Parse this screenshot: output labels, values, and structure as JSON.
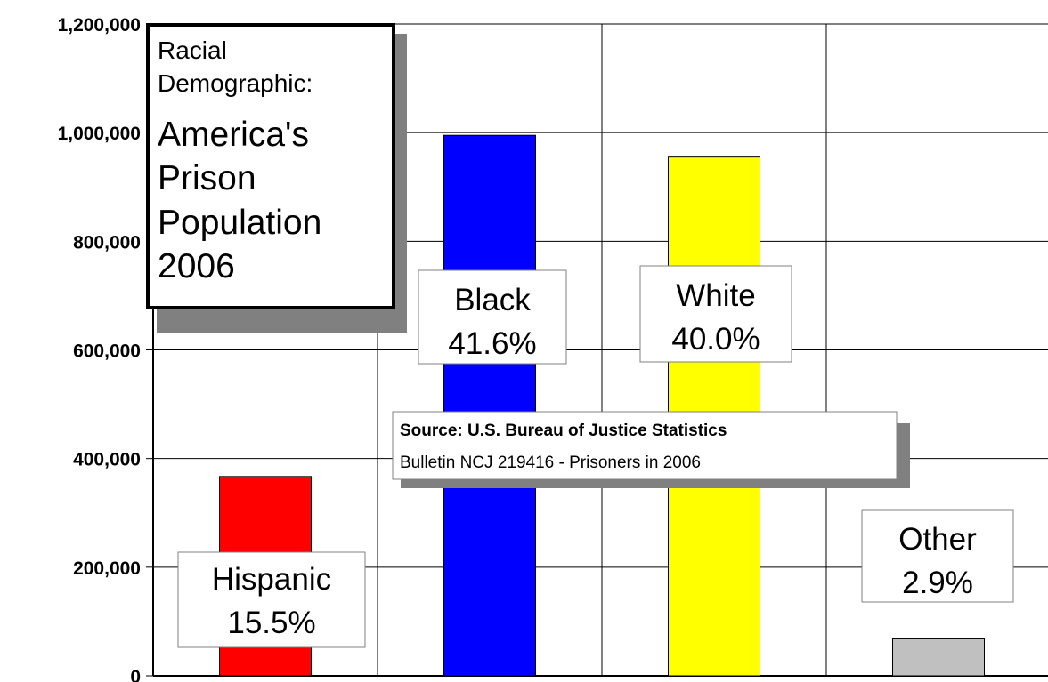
{
  "chart_data": {
    "type": "bar",
    "title_lines": [
      "Racial",
      "Demographic:",
      "America's",
      "Prison",
      "Population",
      "2006"
    ],
    "categories": [
      "Hispanic",
      "Black",
      "White",
      "Other"
    ],
    "values": [
      367000,
      995000,
      955000,
      68000
    ],
    "percent_labels": [
      "15.5%",
      "41.6%",
      "40.0%",
      "2.9%"
    ],
    "colors": [
      "#ff0000",
      "#0000ff",
      "#ffff00",
      "#c0c0c0"
    ],
    "ylim": [
      0,
      1200000
    ],
    "yticks": [
      0,
      200000,
      400000,
      600000,
      800000,
      1000000,
      1200000
    ],
    "ytick_labels": [
      "0",
      "200,000",
      "400,000",
      "600,000",
      "800,000",
      "1,000,000",
      "1,200,000"
    ],
    "grid": true,
    "source_title": "Source: U.S. Bureau of Justice Statistics",
    "source_detail": "Bulletin NCJ 219416 - Prisoners in 2006"
  }
}
